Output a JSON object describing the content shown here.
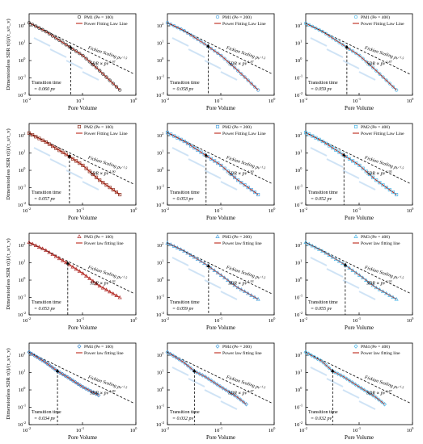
{
  "colors": {
    "pm1": "#333333",
    "pm2": "#8b2a1a",
    "pm3": "#b03030",
    "pm4": "#3a86c8",
    "pe200_marker": "#4aa3df",
    "pe400_marker": "#45b5e8",
    "pe100_marker": "#333333",
    "fit_line": "#c0392b",
    "fickian": "#000000",
    "watermark": "#cfe3f5"
  },
  "chart_data": [
    {
      "type": "scatter",
      "panel": "PM1-Pe100",
      "series": [
        {
          "name": "PM1 (Pe = 100)",
          "marker": "circle"
        },
        {
          "name": "Power Fitting Law Line"
        }
      ],
      "x": [
        0.01,
        0.02,
        0.05,
        0.1,
        0.2,
        0.5
      ],
      "y": [
        150,
        50,
        8,
        2,
        0.3,
        0.02
      ],
      "xlim": [
        0.01,
        1
      ],
      "ylim": [
        0.01,
        500
      ],
      "xscale": "log",
      "yscale": "log",
      "xlabel": "Pore Volume",
      "ylabel": "Dimensionless SDR τ(t)/(τ_s/τ_v)",
      "legend": [
        "PM1 (Pe = 100)",
        "Power Fitting Law Line"
      ],
      "annotations": {
        "transition_label": "Transition time",
        "transition_value": "= 0.060 pv",
        "transition_x": 0.06,
        "fickian": "Fickian Scaling pv",
        "fickian_exp": "-1.5",
        "sdr": "SDR ∝ pv",
        "sdr_exp": "-1.97"
      }
    },
    {
      "type": "scatter",
      "panel": "PM1-Pe200",
      "series": [
        {
          "name": "PM1 (Pe = 200)",
          "marker": "circle"
        },
        {
          "name": "Power Fitting Law Line"
        }
      ],
      "x": [
        0.01,
        0.02,
        0.05,
        0.1,
        0.2,
        0.5
      ],
      "y": [
        150,
        55,
        9,
        2,
        0.3,
        0.02
      ],
      "xlim": [
        0.01,
        1
      ],
      "ylim": [
        0.01,
        500
      ],
      "xscale": "log",
      "yscale": "log",
      "xlabel": "Pore Volume",
      "ylabel": "",
      "legend": [
        "PM1 (Pe = 200)",
        "Power Fitting Law Line"
      ],
      "annotations": {
        "transition_label": "Transition time",
        "transition_value": "= 0.058 pv",
        "transition_x": 0.058,
        "fickian": "Fickian Scaling pv",
        "fickian_exp": "-1.5",
        "sdr": "SDR ∝ pv",
        "sdr_exp": "-1.87"
      }
    },
    {
      "type": "scatter",
      "panel": "PM1-Pe400",
      "series": [
        {
          "name": "PM1 (Pe = 400)",
          "marker": "circle"
        },
        {
          "name": "Power Fitting Law Line"
        }
      ],
      "x": [
        0.01,
        0.02,
        0.05,
        0.1,
        0.2,
        0.5
      ],
      "y": [
        140,
        50,
        8,
        2,
        0.3,
        0.02
      ],
      "xlim": [
        0.01,
        1
      ],
      "ylim": [
        0.01,
        500
      ],
      "xscale": "log",
      "yscale": "log",
      "xlabel": "Pore Volume",
      "ylabel": "",
      "legend": [
        "PM1 (Pe = 400)",
        "Power Fitting Law Line"
      ],
      "annotations": {
        "transition_label": "Transition time",
        "transition_value": "= 0.059 pv",
        "transition_x": 0.059,
        "fickian": "Fickian Scaling pv",
        "fickian_exp": "-1.5",
        "sdr": "SDR ∝ pv",
        "sdr_exp": "-1.87"
      }
    },
    {
      "type": "scatter",
      "panel": "PM2-Pe100",
      "series": [
        {
          "name": "PM2 (Pe = 100)",
          "marker": "square"
        },
        {
          "name": "Power Fitting Law Line"
        }
      ],
      "x": [
        0.01,
        0.02,
        0.05,
        0.1,
        0.2,
        0.5
      ],
      "y": [
        140,
        45,
        8,
        2,
        0.3,
        0.04
      ],
      "xlim": [
        0.01,
        1
      ],
      "ylim": [
        0.01,
        500
      ],
      "xscale": "log",
      "yscale": "log",
      "xlabel": "Pore Volume",
      "ylabel": "Dimensionless SDR τ(t)/(τ_s/τ_v)",
      "legend": [
        "PM2 (Pe = 100)",
        "Power Fitting Law Line"
      ],
      "annotations": {
        "transition_label": "Transition time",
        "transition_value": "= 0.057 pv",
        "transition_x": 0.057,
        "fickian": "Fickian Scaling pv",
        "fickian_exp": "-1.5",
        "sdr": "SDR ∝ pv",
        "sdr_exp": "-1.90"
      }
    },
    {
      "type": "scatter",
      "panel": "PM2-Pe200",
      "series": [
        {
          "name": "PM2 (Pe = 200)",
          "marker": "square"
        },
        {
          "name": "Power Fitting Law Line"
        }
      ],
      "x": [
        0.01,
        0.02,
        0.05,
        0.1,
        0.2,
        0.5
      ],
      "y": [
        150,
        50,
        8,
        2,
        0.3,
        0.04
      ],
      "xlim": [
        0.01,
        1
      ],
      "ylim": [
        0.01,
        500
      ],
      "xscale": "log",
      "yscale": "log",
      "xlabel": "Pore Volume",
      "ylabel": "",
      "legend": [
        "PM2 (Pe = 200)",
        "Power Fitting Law Line"
      ],
      "annotations": {
        "transition_label": "Transition time",
        "transition_value": "= 0.053 pv",
        "transition_x": 0.053,
        "fickian": "Fickian Scaling pv",
        "fickian_exp": "-1.5",
        "sdr": "SDR ∝ pv",
        "sdr_exp": "-1.90"
      }
    },
    {
      "type": "scatter",
      "panel": "PM2-Pe400",
      "series": [
        {
          "name": "PM2 (Pe = 400)",
          "marker": "square"
        },
        {
          "name": "Power Fitting Law Line"
        }
      ],
      "x": [
        0.01,
        0.02,
        0.05,
        0.1,
        0.2,
        0.5
      ],
      "y": [
        150,
        50,
        8,
        2,
        0.3,
        0.04
      ],
      "xlim": [
        0.01,
        1
      ],
      "ylim": [
        0.01,
        500
      ],
      "xscale": "log",
      "yscale": "log",
      "xlabel": "Pore Volume",
      "ylabel": "",
      "legend": [
        "PM2 (Pe = 400)",
        "Power Fitting Law Line"
      ],
      "annotations": {
        "transition_label": "Transition time",
        "transition_value": "= 0.052 pv",
        "transition_x": 0.052,
        "fickian": "Fickian Scaling pv",
        "fickian_exp": "-1.5",
        "sdr": "SDR ∝ pv",
        "sdr_exp": "-1.95"
      }
    },
    {
      "type": "scatter",
      "panel": "PM3-Pe100",
      "series": [
        {
          "name": "PM3 (Pe = 100)",
          "marker": "triangle"
        },
        {
          "name": "Power law fitting line"
        }
      ],
      "x": [
        0.01,
        0.02,
        0.05,
        0.1,
        0.2,
        0.5
      ],
      "y": [
        150,
        55,
        10,
        2.5,
        0.5,
        0.1
      ],
      "xlim": [
        0.01,
        1
      ],
      "ylim": [
        0.01,
        500
      ],
      "xscale": "log",
      "yscale": "log",
      "xlabel": "Pore Volume",
      "ylabel": "Dimensionless SDR τ(t)/(τ_s/τ_v)",
      "legend": [
        "PM3 (Pe = 100)",
        "Power law fitting line"
      ],
      "annotations": {
        "transition_label": "Transition time",
        "transition_value": "= 0.053 pv",
        "transition_x": 0.053,
        "fickian": "Fickian Scaling pv",
        "fickian_exp": "-1.5",
        "sdr": "SDR ∝ pv",
        "sdr_exp": "-1.93"
      }
    },
    {
      "type": "scatter",
      "panel": "PM3-Pe200",
      "series": [
        {
          "name": "PM3 (Pe = 200)",
          "marker": "triangle"
        },
        {
          "name": "Power law fitting line"
        }
      ],
      "x": [
        0.01,
        0.02,
        0.05,
        0.1,
        0.2,
        0.5
      ],
      "y": [
        140,
        50,
        9,
        2,
        0.4,
        0.08
      ],
      "xlim": [
        0.01,
        1
      ],
      "ylim": [
        0.01,
        500
      ],
      "xscale": "log",
      "yscale": "log",
      "xlabel": "Pore Volume",
      "ylabel": "",
      "legend": [
        "PM3 (Pe = 200)",
        "Power law fitting line"
      ],
      "annotations": {
        "transition_label": "Transition time",
        "transition_value": "= 0.059 pv",
        "transition_x": 0.059,
        "fickian": "Fickian Scaling pv",
        "fickian_exp": "-1.5",
        "sdr": "SDR ∝ pv",
        "sdr_exp": "-1.93"
      }
    },
    {
      "type": "scatter",
      "panel": "PM3-Pe400",
      "series": [
        {
          "name": "PM3 (Pe = 400)",
          "marker": "triangle"
        },
        {
          "name": "Power law fitting line"
        }
      ],
      "x": [
        0.01,
        0.02,
        0.05,
        0.1,
        0.2,
        0.5
      ],
      "y": [
        150,
        50,
        9,
        2,
        0.4,
        0.08
      ],
      "xlim": [
        0.01,
        1
      ],
      "ylim": [
        0.01,
        500
      ],
      "xscale": "log",
      "yscale": "log",
      "xlabel": "Pore Volume",
      "ylabel": "",
      "legend": [
        "PM3 (Pe = 400)",
        "Power law fitting line"
      ],
      "annotations": {
        "transition_label": "Transition time",
        "transition_value": "= 0.055 pv",
        "transition_x": 0.055,
        "fickian": "Fickian Scaling pv",
        "fickian_exp": "-1.5",
        "sdr": "SDR ∝ pv",
        "sdr_exp": "-1.93"
      }
    },
    {
      "type": "scatter",
      "panel": "PM4-Pe100",
      "series": [
        {
          "name": "PM4 (Pe = 100)",
          "marker": "diamond"
        },
        {
          "name": "Power law fitting line"
        }
      ],
      "x": [
        0.01,
        0.02,
        0.034,
        0.05,
        0.1,
        0.2
      ],
      "y": [
        150,
        40,
        12,
        6,
        1.5,
        0.5
      ],
      "xlim": [
        0.01,
        1
      ],
      "ylim": [
        0.01,
        500
      ],
      "xscale": "log",
      "yscale": "log",
      "xlabel": "Pore Volume",
      "ylabel": "Dimensionless SDR τ(t)/(τ_s/τ_v)",
      "legend": [
        "PM4 (Pe = 100)",
        "Power law fitting line"
      ],
      "annotations": {
        "transition_label": "Transition time",
        "transition_value": "= 0.034 pv",
        "transition_x": 0.034,
        "fickian": "Fickian Scaling pv",
        "fickian_exp": "-1.5",
        "sdr": "SDR ∝ pv",
        "sdr_exp": "-1.89"
      }
    },
    {
      "type": "scatter",
      "panel": "PM4-Pe200",
      "series": [
        {
          "name": "PM4 (Pe = 200)",
          "marker": "diamond"
        },
        {
          "name": "Power law fitting line"
        }
      ],
      "x": [
        0.01,
        0.02,
        0.032,
        0.05,
        0.1,
        0.2,
        0.3
      ],
      "y": [
        150,
        40,
        12,
        6,
        1.5,
        0.4,
        0.15
      ],
      "xlim": [
        0.01,
        1
      ],
      "ylim": [
        0.01,
        500
      ],
      "xscale": "log",
      "yscale": "log",
      "xlabel": "Pore Volume",
      "ylabel": "",
      "legend": [
        "PM4 (Pe = 200)",
        "Power law fitting line"
      ],
      "annotations": {
        "transition_label": "Transition time",
        "transition_value": "= 0.032 pv",
        "transition_x": 0.032,
        "fickian": "Fickian Scaling pv",
        "fickian_exp": "-1.5",
        "sdr": "SDR ∝ pv",
        "sdr_exp": "-1.87"
      }
    },
    {
      "type": "scatter",
      "panel": "PM4-Pe400",
      "series": [
        {
          "name": "PM4 (Pe = 400)",
          "marker": "diamond"
        },
        {
          "name": "Power law fitting line"
        }
      ],
      "x": [
        0.01,
        0.02,
        0.032,
        0.05,
        0.1,
        0.2,
        0.3
      ],
      "y": [
        150,
        45,
        12,
        6,
        1.5,
        0.4,
        0.15
      ],
      "xlim": [
        0.01,
        1
      ],
      "ylim": [
        0.01,
        500
      ],
      "xscale": "log",
      "yscale": "log",
      "xlabel": "Pore Volume",
      "ylabel": "",
      "legend": [
        "PM4 (Pe = 400)",
        "Power law fitting line"
      ],
      "annotations": {
        "transition_label": "Transition time",
        "transition_value": "= 0.032 pv",
        "transition_x": 0.032,
        "fickian": "Fickian Scaling pv",
        "fickian_exp": "-1.5",
        "sdr": "SDR ∝ pv",
        "sdr_exp": "-1.87"
      }
    }
  ]
}
